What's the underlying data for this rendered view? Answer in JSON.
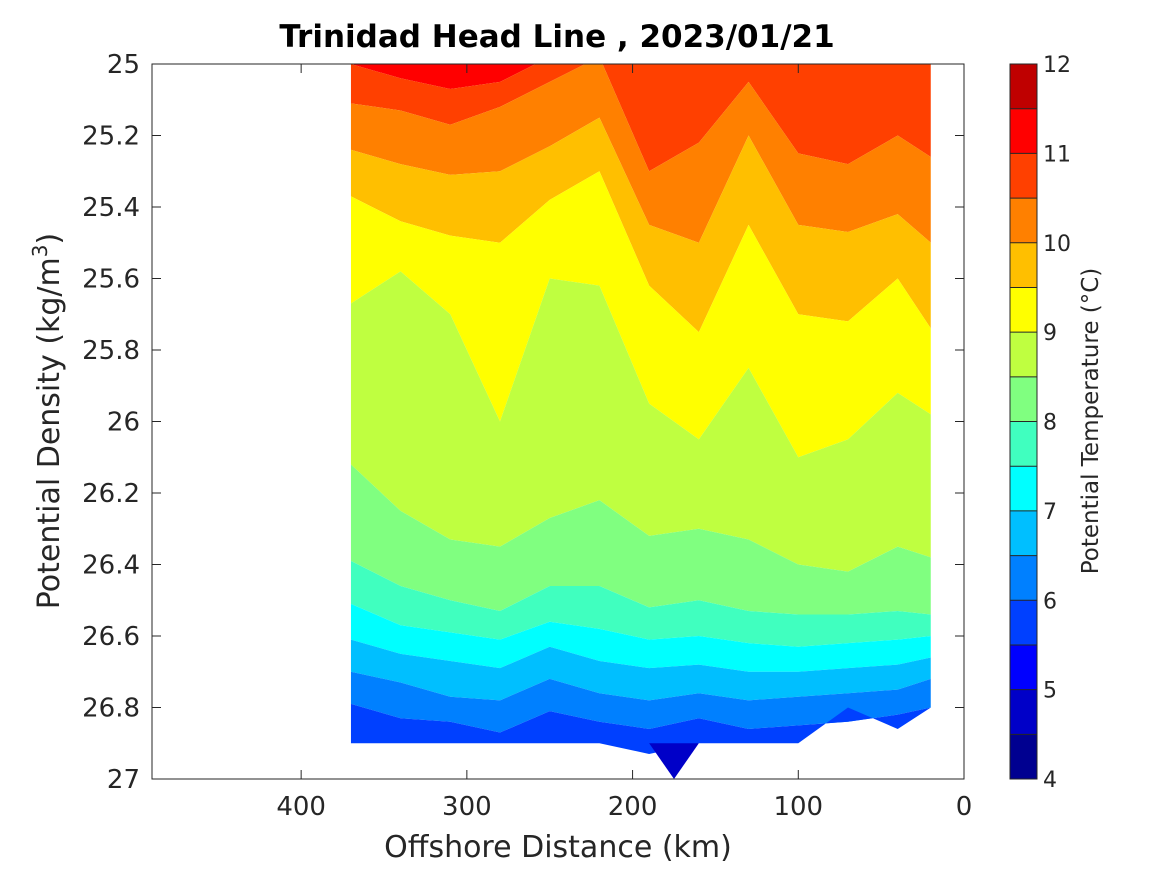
{
  "chart_data": {
    "type": "contourf",
    "title": "Trinidad Head Line , 2023/01/21",
    "xlabel": "Offshore Distance (km)",
    "ylabel_main": "Potential Density (kg/m",
    "ylabel_sup": "3",
    "ylabel_close": ")",
    "xlim": [
      490,
      0
    ],
    "x_reversed": true,
    "ylim": [
      25,
      27
    ],
    "y_reversed": true,
    "xticks": [
      400,
      300,
      200,
      100,
      0
    ],
    "xtick_labels": [
      "400",
      "300",
      "200",
      "100",
      "0"
    ],
    "yticks": [
      25,
      25.2,
      25.4,
      25.6,
      25.8,
      26,
      26.2,
      26.4,
      26.6,
      26.8,
      27
    ],
    "ytick_labels": [
      "25",
      "25.2",
      "25.4",
      "25.6",
      "25.8",
      "26",
      "26.2",
      "26.4",
      "26.6",
      "26.8",
      "27"
    ],
    "colorbar": {
      "label": "Potential Temperature (°C)",
      "range": [
        4,
        12
      ],
      "tick_values": [
        4,
        5,
        6,
        7,
        8,
        9,
        10,
        11,
        12
      ],
      "tick_labels": [
        "4",
        "5",
        "6",
        "7",
        "8",
        "9",
        "10",
        "11",
        "12"
      ],
      "levels": [
        4,
        4.5,
        5,
        5.5,
        6,
        6.5,
        7,
        7.5,
        8,
        8.5,
        9,
        9.5,
        10,
        10.5,
        11,
        11.5,
        12
      ],
      "colors": [
        "#000090",
        "#0000c8",
        "#0000ff",
        "#0040ff",
        "#0080ff",
        "#00bfff",
        "#00ffff",
        "#40ffbf",
        "#80ff80",
        "#bfff40",
        "#ffff00",
        "#ffbf00",
        "#ff8000",
        "#ff4000",
        "#ff0000",
        "#bf0000"
      ]
    },
    "x": [
      370,
      340,
      310,
      280,
      250,
      220,
      190,
      160,
      130,
      100,
      70,
      40,
      20
    ],
    "boundaries": [
      {
        "name": "t10_5",
        "values": [
          25.0,
          25.04,
          25.07,
          25.05,
          24.98,
          24.95,
          25.0,
          25.0,
          25.0,
          24.95,
          24.93,
          24.95,
          25.0
        ]
      },
      {
        "name": "t10",
        "values": [
          25.11,
          25.13,
          25.17,
          25.12,
          25.05,
          24.98,
          25.3,
          25.22,
          25.05,
          25.25,
          25.28,
          25.2,
          25.26
        ]
      },
      {
        "name": "t9_5",
        "values": [
          25.24,
          25.28,
          25.31,
          25.3,
          25.23,
          25.15,
          25.45,
          25.5,
          25.2,
          25.45,
          25.47,
          25.42,
          25.5
        ]
      },
      {
        "name": "t9",
        "values": [
          25.37,
          25.44,
          25.48,
          25.5,
          25.38,
          25.3,
          25.62,
          25.75,
          25.45,
          25.7,
          25.72,
          25.6,
          25.74
        ]
      },
      {
        "name": "t8_5",
        "values": [
          25.67,
          25.58,
          25.7,
          26.0,
          25.6,
          25.62,
          25.95,
          26.05,
          25.85,
          26.1,
          26.05,
          25.92,
          25.98
        ]
      },
      {
        "name": "t8",
        "values": [
          26.12,
          26.25,
          26.33,
          26.35,
          26.27,
          26.22,
          26.32,
          26.3,
          26.33,
          26.4,
          26.42,
          26.35,
          26.38
        ]
      },
      {
        "name": "t7_5",
        "values": [
          26.39,
          26.46,
          26.5,
          26.53,
          26.46,
          26.46,
          26.52,
          26.5,
          26.53,
          26.54,
          26.54,
          26.53,
          26.54
        ]
      },
      {
        "name": "t7",
        "values": [
          26.51,
          26.57,
          26.59,
          26.61,
          26.56,
          26.58,
          26.61,
          26.6,
          26.62,
          26.63,
          26.62,
          26.61,
          26.6
        ]
      },
      {
        "name": "t6_5",
        "values": [
          26.61,
          26.65,
          26.67,
          26.69,
          26.63,
          26.67,
          26.69,
          26.68,
          26.7,
          26.7,
          26.69,
          26.68,
          26.66
        ]
      },
      {
        "name": "t6",
        "values": [
          26.7,
          26.73,
          26.77,
          26.78,
          26.72,
          26.76,
          26.78,
          26.76,
          26.78,
          26.77,
          26.76,
          26.75,
          26.72
        ]
      },
      {
        "name": "t5_5",
        "values": [
          26.79,
          26.83,
          26.84,
          26.87,
          26.81,
          26.84,
          26.86,
          26.83,
          26.86,
          26.85,
          26.84,
          26.82,
          26.8
        ]
      },
      {
        "name": "bottom",
        "values": [
          26.9,
          26.9,
          26.9,
          26.9,
          26.9,
          26.9,
          26.93,
          26.9,
          26.9,
          26.9,
          26.8,
          26.86,
          26.8
        ]
      }
    ],
    "notes": "Filled contour section: temperature levels between boundaries, warmest at top (25 kg/m3) and coolest at the bottom."
  }
}
